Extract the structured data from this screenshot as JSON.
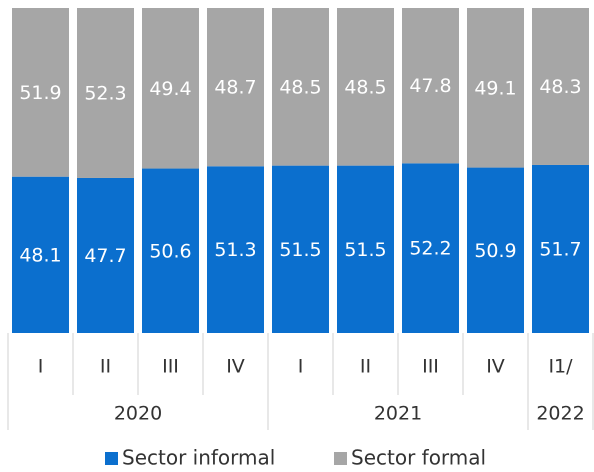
{
  "chart_data": {
    "type": "stacked-bar",
    "groups": [
      {
        "name": "2020",
        "categories": [
          "I",
          "II",
          "III",
          "IV"
        ]
      },
      {
        "name": "2021",
        "categories": [
          "I",
          "II",
          "III",
          "IV"
        ]
      },
      {
        "name": "2022",
        "categories": [
          "I1/"
        ]
      }
    ],
    "series": [
      {
        "name": "Sector informal",
        "color": "#0b6fce",
        "values": [
          48.1,
          47.7,
          50.6,
          51.3,
          51.5,
          51.5,
          52.2,
          50.9,
          51.7
        ]
      },
      {
        "name": "Sector formal",
        "color": "#a6a6a6",
        "values": [
          51.9,
          52.3,
          49.4,
          48.7,
          48.5,
          48.5,
          47.8,
          49.1,
          48.3
        ]
      }
    ],
    "ylim": [
      0,
      100
    ]
  }
}
